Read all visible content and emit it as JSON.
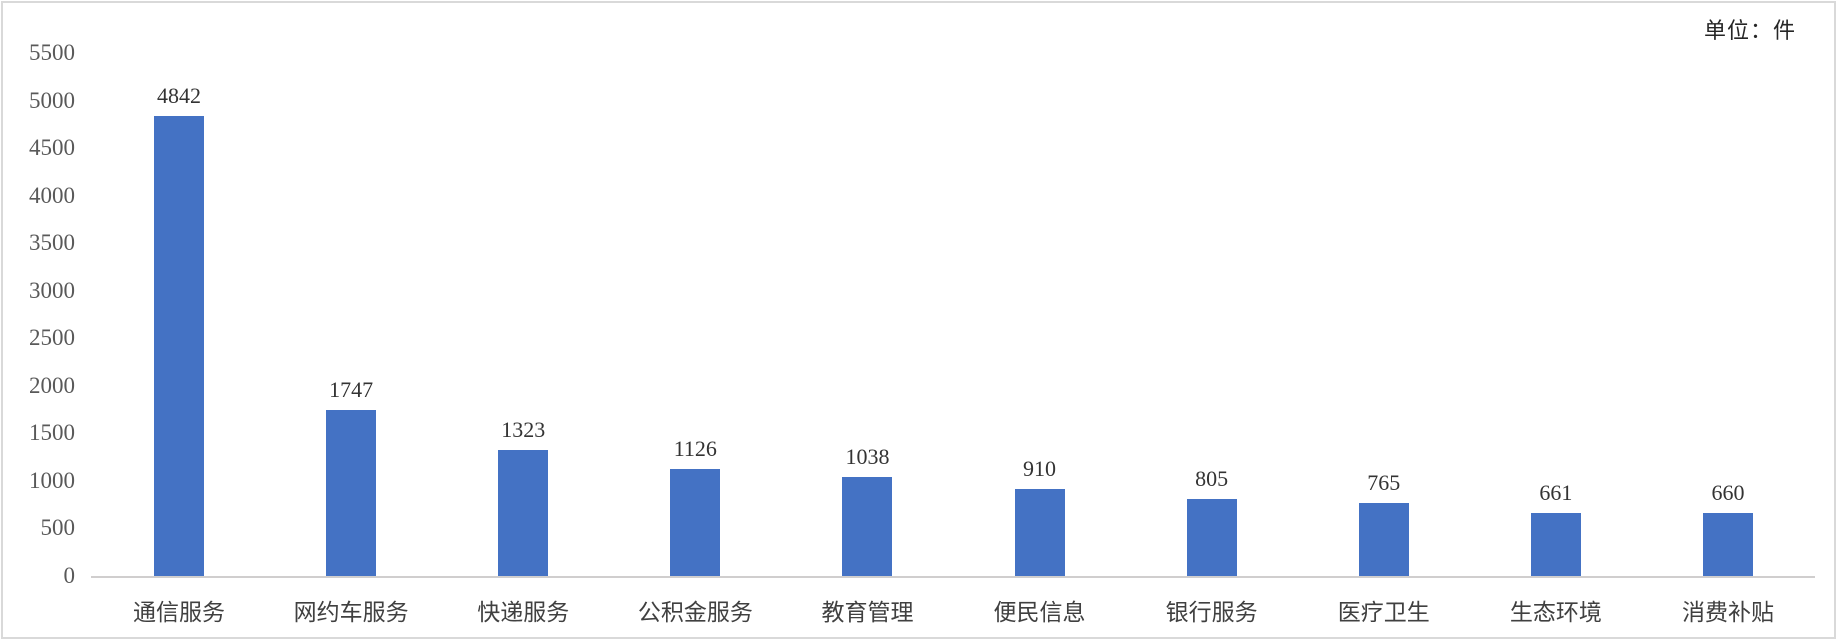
{
  "unit_label": "单位：件",
  "colors": {
    "bar": "#4472C4",
    "axis_line": "#D0CECE",
    "tick_text": "#595959",
    "value_text": "#333333",
    "category_text": "#404040",
    "border": "#D9D9D9",
    "background": "#FFFFFF"
  },
  "chart_data": {
    "type": "bar",
    "title": "",
    "xlabel": "",
    "ylabel": "单位：件",
    "categories": [
      "通信服务",
      "网约车服务",
      "快递服务",
      "公积金服务",
      "教育管理",
      "便民信息",
      "银行服务",
      "医疗卫生",
      "生态环境",
      "消费补贴"
    ],
    "values": [
      4842,
      1747,
      1323,
      1126,
      1038,
      910,
      805,
      765,
      661,
      660
    ],
    "ylim": [
      0,
      5500
    ],
    "yticks": [
      0,
      500,
      1000,
      1500,
      2000,
      2500,
      3000,
      3500,
      4000,
      4500,
      5000,
      5500
    ],
    "grid": false,
    "legend": false,
    "data_labels": true,
    "bar_color": "#4472C4"
  }
}
